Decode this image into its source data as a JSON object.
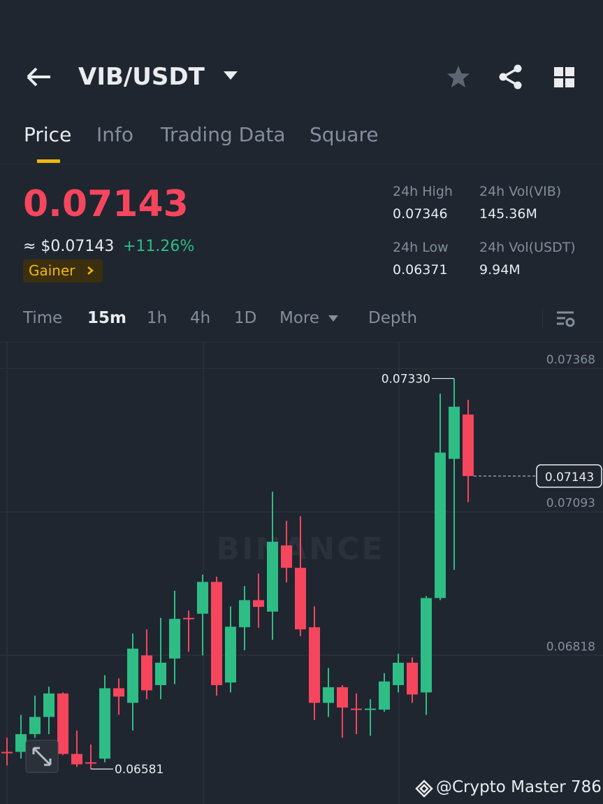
{
  "header": {
    "title": "VIB/USDT"
  },
  "tabs": [
    "Price",
    "Info",
    "Trading Data",
    "Square"
  ],
  "ticker": {
    "price": "0.07143",
    "usd_price": "≈ $0.07143",
    "change": "+11.26%",
    "badge": "Gainer",
    "stats": [
      {
        "label": "24h High",
        "value": "0.07346"
      },
      {
        "label": "24h Vol(VIB)",
        "value": "145.36M"
      },
      {
        "label": "24h Low",
        "value": "0.06371"
      },
      {
        "label": "24h Vol(USDT)",
        "value": "9.94M"
      }
    ]
  },
  "intervals": [
    "Time",
    "15m",
    "1h",
    "4h",
    "1D",
    "More",
    "Depth"
  ],
  "chart_data": {
    "type": "candlestick",
    "open": [
      0.06614,
      0.06614,
      0.06648,
      0.06681,
      0.06726,
      0.0661,
      0.06594,
      0.06601,
      0.06736,
      0.06708,
      0.06799,
      0.06742,
      0.06793,
      0.06871,
      0.06879,
      0.0694,
      0.06747,
      0.06853,
      0.06905,
      0.06883,
      0.0701,
      0.06967,
      0.06853,
      0.06708,
      0.06738,
      0.06697,
      0.06695,
      0.06695,
      0.06742,
      0.06785,
      0.06728,
      0.06909,
      0.07176,
      0.07261
    ],
    "high": [
      0.06641,
      0.06685,
      0.06722,
      0.06739,
      0.06728,
      0.06655,
      0.06628,
      0.06761,
      0.06755,
      0.06841,
      0.06849,
      0.06871,
      0.06923,
      0.06885,
      0.06954,
      0.0695,
      0.06893,
      0.06932,
      0.06956,
      0.07113,
      0.07057,
      0.07066,
      0.06893,
      0.06775,
      0.06742,
      0.06726,
      0.06715,
      0.06765,
      0.06802,
      0.06795,
      0.06913,
      0.07301,
      0.0733,
      0.07289
    ],
    "low": [
      0.06588,
      0.06601,
      0.06641,
      0.06648,
      0.06608,
      0.06585,
      0.06581,
      0.06594,
      0.06685,
      0.06655,
      0.06715,
      0.06715,
      0.06744,
      0.06806,
      0.06799,
      0.06722,
      0.06728,
      0.06809,
      0.06852,
      0.06829,
      0.06939,
      0.06836,
      0.06675,
      0.06681,
      0.06641,
      0.06648,
      0.06645,
      0.06691,
      0.06728,
      0.06708,
      0.06685,
      0.06905,
      0.06963,
      0.07093
    ],
    "close": [
      0.06612,
      0.06648,
      0.06681,
      0.06726,
      0.0661,
      0.0659,
      0.06592,
      0.06736,
      0.0672,
      0.06812,
      0.06732,
      0.06785,
      0.06869,
      0.06869,
      0.0694,
      0.06742,
      0.06854,
      0.06905,
      0.06892,
      0.07017,
      0.06967,
      0.06849,
      0.06708,
      0.06738,
      0.06699,
      0.06695,
      0.06697,
      0.06749,
      0.06785,
      0.06724,
      0.06909,
      0.07188,
      0.07276,
      0.07143
    ],
    "up_color": "#2ebd85",
    "down_color": "#f6465d",
    "ylim": [
      0.06514,
      0.07399
    ],
    "yticks": [
      0.07368,
      0.07093,
      0.06818
    ],
    "high_label": "0.07330",
    "low_label": "0.06581",
    "last_label": "0.07143",
    "grid": true,
    "watermark": "BINANCE"
  },
  "footer": {
    "credit": "@Crypto Master 786"
  }
}
